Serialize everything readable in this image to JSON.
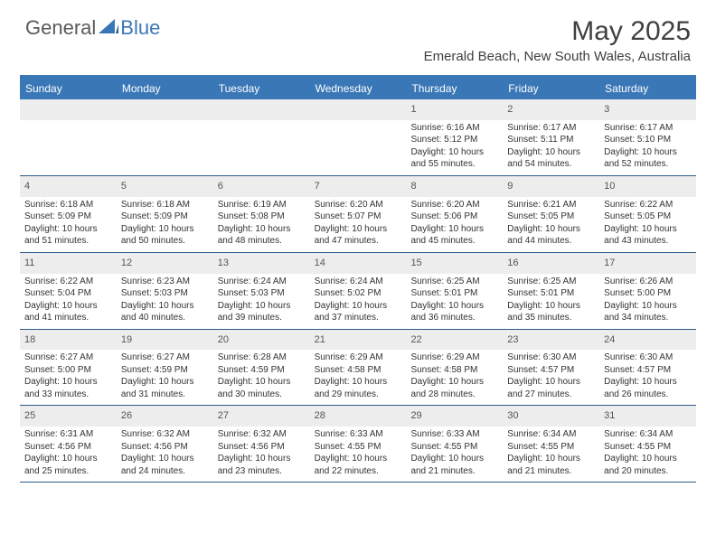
{
  "brand": {
    "general": "General",
    "blue": "Blue"
  },
  "title": {
    "month": "May 2025",
    "location": "Emerald Beach, New South Wales, Australia"
  },
  "colors": {
    "header_bg": "#3a77b7",
    "header_text": "#ffffff",
    "daynum_bg": "#ededed",
    "row_border": "#2d5a8a",
    "body_text": "#333333",
    "page_bg": "#ffffff"
  },
  "day_labels": [
    "Sunday",
    "Monday",
    "Tuesday",
    "Wednesday",
    "Thursday",
    "Friday",
    "Saturday"
  ],
  "weeks": [
    [
      null,
      null,
      null,
      null,
      {
        "n": "1",
        "sunrise": "6:16 AM",
        "sunset": "5:12 PM",
        "daylight": "10 hours and 55 minutes."
      },
      {
        "n": "2",
        "sunrise": "6:17 AM",
        "sunset": "5:11 PM",
        "daylight": "10 hours and 54 minutes."
      },
      {
        "n": "3",
        "sunrise": "6:17 AM",
        "sunset": "5:10 PM",
        "daylight": "10 hours and 52 minutes."
      }
    ],
    [
      {
        "n": "4",
        "sunrise": "6:18 AM",
        "sunset": "5:09 PM",
        "daylight": "10 hours and 51 minutes."
      },
      {
        "n": "5",
        "sunrise": "6:18 AM",
        "sunset": "5:09 PM",
        "daylight": "10 hours and 50 minutes."
      },
      {
        "n": "6",
        "sunrise": "6:19 AM",
        "sunset": "5:08 PM",
        "daylight": "10 hours and 48 minutes."
      },
      {
        "n": "7",
        "sunrise": "6:20 AM",
        "sunset": "5:07 PM",
        "daylight": "10 hours and 47 minutes."
      },
      {
        "n": "8",
        "sunrise": "6:20 AM",
        "sunset": "5:06 PM",
        "daylight": "10 hours and 45 minutes."
      },
      {
        "n": "9",
        "sunrise": "6:21 AM",
        "sunset": "5:05 PM",
        "daylight": "10 hours and 44 minutes."
      },
      {
        "n": "10",
        "sunrise": "6:22 AM",
        "sunset": "5:05 PM",
        "daylight": "10 hours and 43 minutes."
      }
    ],
    [
      {
        "n": "11",
        "sunrise": "6:22 AM",
        "sunset": "5:04 PM",
        "daylight": "10 hours and 41 minutes."
      },
      {
        "n": "12",
        "sunrise": "6:23 AM",
        "sunset": "5:03 PM",
        "daylight": "10 hours and 40 minutes."
      },
      {
        "n": "13",
        "sunrise": "6:24 AM",
        "sunset": "5:03 PM",
        "daylight": "10 hours and 39 minutes."
      },
      {
        "n": "14",
        "sunrise": "6:24 AM",
        "sunset": "5:02 PM",
        "daylight": "10 hours and 37 minutes."
      },
      {
        "n": "15",
        "sunrise": "6:25 AM",
        "sunset": "5:01 PM",
        "daylight": "10 hours and 36 minutes."
      },
      {
        "n": "16",
        "sunrise": "6:25 AM",
        "sunset": "5:01 PM",
        "daylight": "10 hours and 35 minutes."
      },
      {
        "n": "17",
        "sunrise": "6:26 AM",
        "sunset": "5:00 PM",
        "daylight": "10 hours and 34 minutes."
      }
    ],
    [
      {
        "n": "18",
        "sunrise": "6:27 AM",
        "sunset": "5:00 PM",
        "daylight": "10 hours and 33 minutes."
      },
      {
        "n": "19",
        "sunrise": "6:27 AM",
        "sunset": "4:59 PM",
        "daylight": "10 hours and 31 minutes."
      },
      {
        "n": "20",
        "sunrise": "6:28 AM",
        "sunset": "4:59 PM",
        "daylight": "10 hours and 30 minutes."
      },
      {
        "n": "21",
        "sunrise": "6:29 AM",
        "sunset": "4:58 PM",
        "daylight": "10 hours and 29 minutes."
      },
      {
        "n": "22",
        "sunrise": "6:29 AM",
        "sunset": "4:58 PM",
        "daylight": "10 hours and 28 minutes."
      },
      {
        "n": "23",
        "sunrise": "6:30 AM",
        "sunset": "4:57 PM",
        "daylight": "10 hours and 27 minutes."
      },
      {
        "n": "24",
        "sunrise": "6:30 AM",
        "sunset": "4:57 PM",
        "daylight": "10 hours and 26 minutes."
      }
    ],
    [
      {
        "n": "25",
        "sunrise": "6:31 AM",
        "sunset": "4:56 PM",
        "daylight": "10 hours and 25 minutes."
      },
      {
        "n": "26",
        "sunrise": "6:32 AM",
        "sunset": "4:56 PM",
        "daylight": "10 hours and 24 minutes."
      },
      {
        "n": "27",
        "sunrise": "6:32 AM",
        "sunset": "4:56 PM",
        "daylight": "10 hours and 23 minutes."
      },
      {
        "n": "28",
        "sunrise": "6:33 AM",
        "sunset": "4:55 PM",
        "daylight": "10 hours and 22 minutes."
      },
      {
        "n": "29",
        "sunrise": "6:33 AM",
        "sunset": "4:55 PM",
        "daylight": "10 hours and 21 minutes."
      },
      {
        "n": "30",
        "sunrise": "6:34 AM",
        "sunset": "4:55 PM",
        "daylight": "10 hours and 21 minutes."
      },
      {
        "n": "31",
        "sunrise": "6:34 AM",
        "sunset": "4:55 PM",
        "daylight": "10 hours and 20 minutes."
      }
    ]
  ],
  "labels": {
    "sunrise": "Sunrise: ",
    "sunset": "Sunset: ",
    "daylight": "Daylight: "
  }
}
